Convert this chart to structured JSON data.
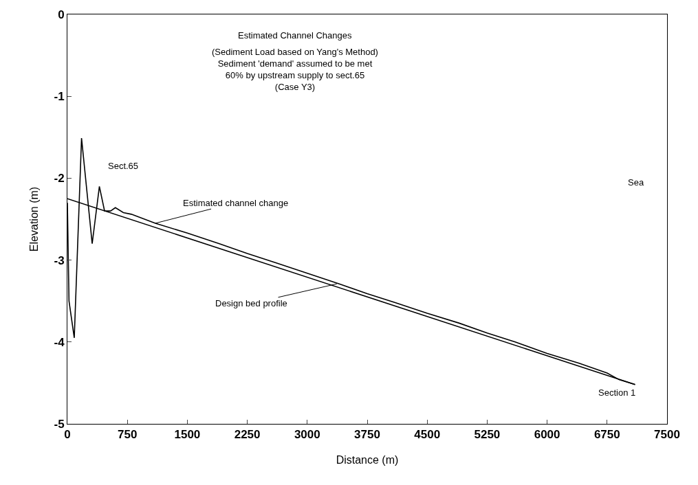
{
  "chart_data": {
    "type": "line",
    "title": "Estimated Channel Changes",
    "subtitle": "(Sediment Load based on Yang's Method)\nSediment 'demand' assumed to be met\n60% by upstream supply to sect.65\n(Case Y3)",
    "xlabel": "Distance (m)",
    "ylabel": "Elevation (m)",
    "series": [
      {
        "name": "Estimated channel change",
        "color": "#000000",
        "x": [
          0,
          20,
          86,
          177,
          310,
          400,
          465,
          540,
          600,
          700,
          800,
          1100,
          1500,
          1900,
          2250,
          2600,
          3000,
          3400,
          3750,
          4100,
          4500,
          4900,
          5250,
          5600,
          6000,
          6400,
          6750,
          6900,
          7100
        ],
        "values": [
          -2.3,
          -3.5,
          -3.95,
          -1.51,
          -2.8,
          -2.1,
          -2.4,
          -2.4,
          -2.36,
          -2.42,
          -2.44,
          -2.55,
          -2.67,
          -2.8,
          -2.92,
          -3.03,
          -3.16,
          -3.29,
          -3.41,
          -3.52,
          -3.65,
          -3.77,
          -3.89,
          -4.0,
          -4.14,
          -4.26,
          -4.38,
          -4.46,
          -4.52
        ]
      },
      {
        "name": "Design bed profile",
        "color": "#000000",
        "x": [
          0,
          7100
        ],
        "values": [
          -2.25,
          -4.52
        ]
      }
    ],
    "annotations": [
      "Sect.65",
      "Sea",
      "Section 1"
    ],
    "xlim": [
      0,
      7500
    ],
    "xticks": [
      0,
      750,
      1500,
      2250,
      3000,
      3750,
      4500,
      5250,
      6000,
      6750,
      7500
    ],
    "ylim": [
      -5,
      0
    ],
    "yticks": [
      -5,
      -4,
      -3,
      -2,
      -1,
      0
    ],
    "grid": false,
    "legend": false,
    "marker": "none",
    "line_style": "solid"
  }
}
